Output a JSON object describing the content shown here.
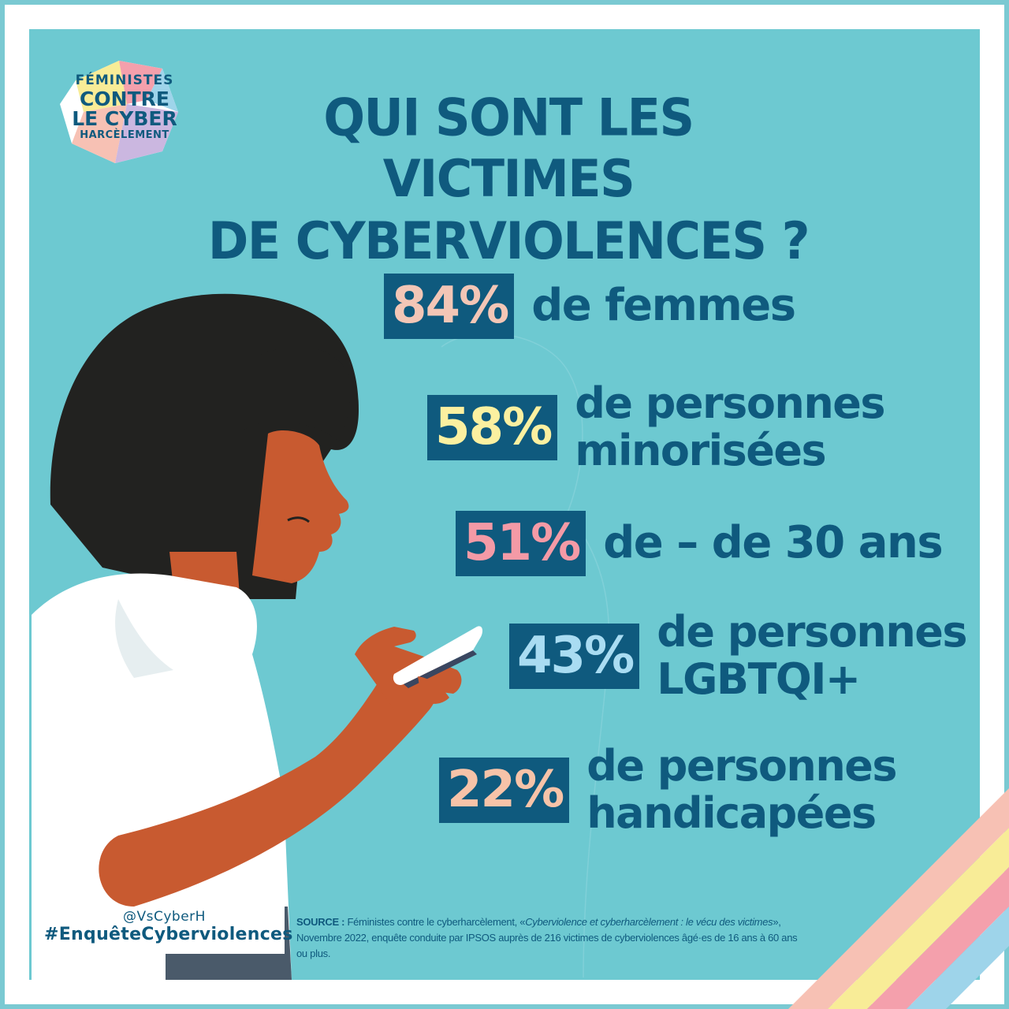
{
  "logo": {
    "line1": "FÉMINISTES",
    "line2": "CONTRE",
    "line3": "LE CYBER",
    "line4": "HARCÈLEMENT"
  },
  "title": {
    "line1": "QUI SONT LES VICTIMES",
    "line2": "DE CYBERVIOLENCES ?"
  },
  "stats": [
    {
      "percent": "84%",
      "line1": "de femmes",
      "line2": "",
      "color": "#f3c6b6"
    },
    {
      "percent": "58%",
      "line1": "de personnes",
      "line2": "minorisées",
      "color": "#fbf0a0"
    },
    {
      "percent": "51%",
      "line1": "de – de 30 ans",
      "line2": "",
      "color": "#f49aa6"
    },
    {
      "percent": "43%",
      "line1": "de personnes",
      "line2": "LGBTQI+",
      "color": "#a9dcf2"
    },
    {
      "percent": "22%",
      "line1": "de personnes",
      "line2": "handicapées",
      "color": "#f7c3a8"
    }
  ],
  "footer": {
    "handle": "@VsCyberH",
    "hashtag": "#EnquêteCyberviolences",
    "source_label": "SOURCE :",
    "source_text_1": " Féministes contre le cyberharcèlement, «",
    "source_title": "Cyberviolence et cyberharcèlement : le vécu des victimes",
    "source_text_2": "»,",
    "source_line2": "Novembre 2022, enquête conduite par IPSOS auprès de 216 victimes de cyberviolences âgé·es de 16 ans à 60 ans ou plus."
  },
  "colors": {
    "background": "#6dc9d1",
    "text": "#0f5a7e",
    "skin": "#c85a30",
    "hair": "#222220",
    "shirt": "#ffffff",
    "stripes": [
      "#f7c1b4",
      "#f8ec97",
      "#f4a0ac",
      "#9ed4ea"
    ]
  },
  "icons": {
    "illustration": "woman-with-phone-illustration",
    "logo": "feministes-logo-icon",
    "stripes": "rainbow-stripes-decoration"
  }
}
